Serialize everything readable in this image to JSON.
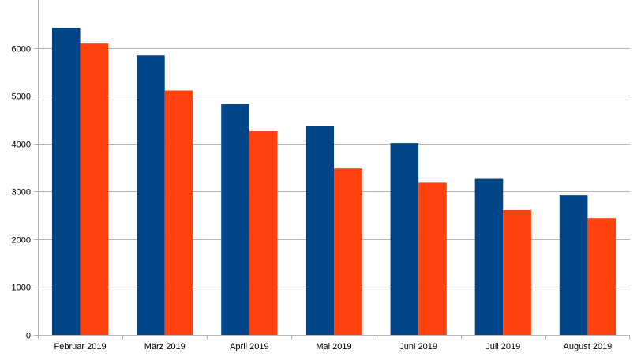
{
  "chart_data": {
    "type": "bar",
    "title": "",
    "xlabel": "",
    "ylabel": "",
    "ylim": [
      0,
      7000
    ],
    "yticks": [
      0,
      1000,
      2000,
      3000,
      4000,
      5000,
      6000
    ],
    "grid": true,
    "legend": "none",
    "categories": [
      "Februar 2019",
      "März 2019",
      "April 2019",
      "Mai 2019",
      "Juni 2019",
      "Juli 2019",
      "August 2019"
    ],
    "series": [
      {
        "color": "#004586",
        "values": [
          6420,
          5840,
          4820,
          4360,
          4010,
          3260,
          2920
        ]
      },
      {
        "color": "#ff420e",
        "values": [
          6090,
          5110,
          4260,
          3480,
          3180,
          2610,
          2440
        ]
      }
    ]
  }
}
